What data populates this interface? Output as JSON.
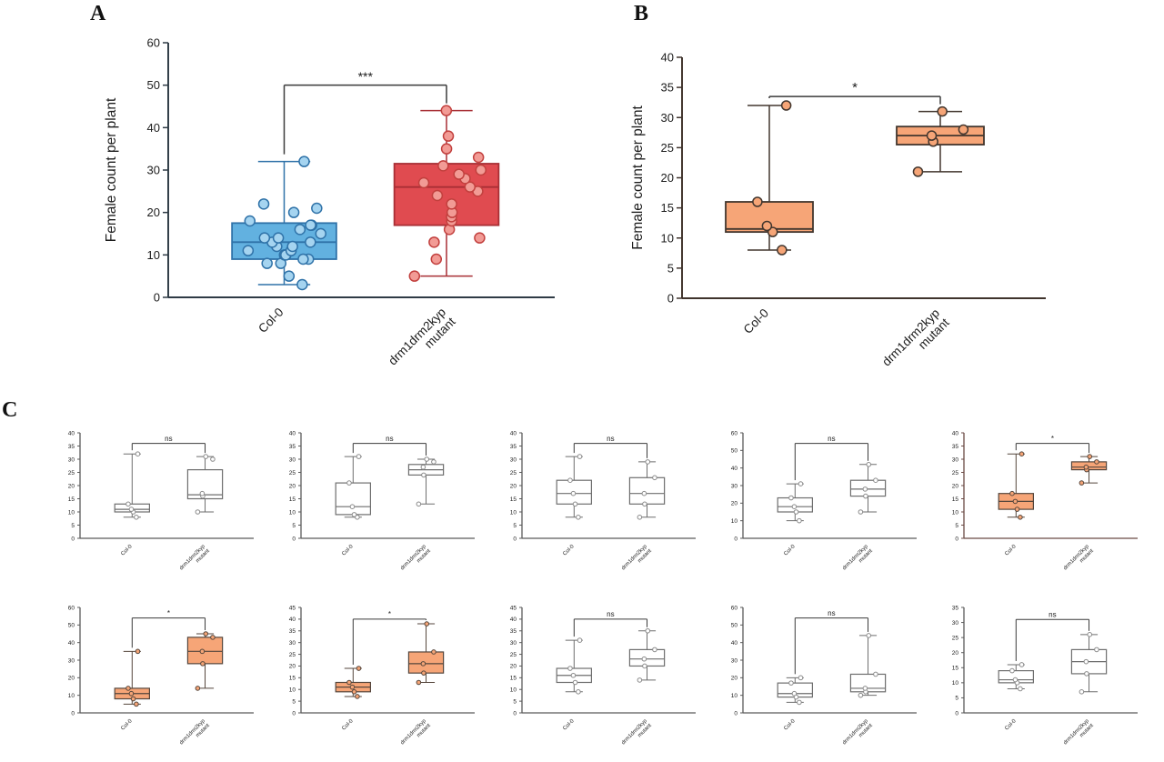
{
  "figure": {
    "background": "#ffffff",
    "panels": [
      {
        "label": "A"
      },
      {
        "label": "B"
      },
      {
        "label": "C"
      }
    ]
  },
  "chart_data": [
    {
      "panel": "A",
      "type": "box",
      "ylabel": "Female count per plant",
      "ylim": [
        0,
        60
      ],
      "ytick_step": 10,
      "axis_color": "#2f3b45",
      "sig_label": "***",
      "sig_y": 50,
      "boxes": [
        {
          "label_lines": [
            "Col-0"
          ],
          "min": 3,
          "q1": 9,
          "median": 13,
          "q3": 17.5,
          "max": 32,
          "points": [
            3,
            5,
            8,
            8,
            9,
            9,
            10,
            10,
            10,
            11,
            11,
            12,
            12,
            13,
            13,
            14,
            14,
            15,
            16,
            17,
            17,
            18,
            20,
            21,
            22,
            32
          ],
          "box_fill": "#62b1e0",
          "box_stroke": "#2f72a8",
          "point_fill": "#a5d4f0",
          "point_stroke": "#2f72a8"
        },
        {
          "label_lines": [
            "drm1drm2kyp",
            "mutant"
          ],
          "min": 5,
          "q1": 17,
          "median": 26,
          "q3": 31.5,
          "max": 44,
          "points": [
            5,
            9,
            13,
            14,
            16,
            18,
            19,
            20,
            22,
            24,
            25,
            26,
            27,
            28,
            29,
            30,
            31,
            33,
            35,
            38,
            44
          ],
          "box_fill": "#e04b50",
          "box_stroke": "#a82f35",
          "point_fill": "#f29b95",
          "point_stroke": "#c2403e"
        }
      ]
    },
    {
      "panel": "B",
      "type": "box",
      "ylabel": "Female count per plant",
      "ylim": [
        0,
        40
      ],
      "ytick_step": 5,
      "axis_color": "#3f332c",
      "sig_label": "*",
      "sig_y": 33.5,
      "boxes": [
        {
          "label_lines": [
            "Col-0"
          ],
          "min": 8,
          "q1": 11,
          "median": 11.5,
          "q3": 16,
          "max": 32,
          "points": [
            8,
            11,
            12,
            16,
            32
          ],
          "box_fill": "#f6a577",
          "box_stroke": "#42362e",
          "point_fill": "#f6a577",
          "point_stroke": "#42362e"
        },
        {
          "label_lines": [
            "drm1drm2kyp",
            "mutant"
          ],
          "min": 21,
          "q1": 25.5,
          "median": 27,
          "q3": 28.5,
          "max": 31,
          "points": [
            21,
            26,
            27,
            28,
            31
          ],
          "box_fill": "#f6a577",
          "box_stroke": "#42362e",
          "point_fill": "#f6a577",
          "point_stroke": "#42362e"
        }
      ]
    },
    {
      "panel": "C1",
      "type": "box",
      "ylabel": "",
      "ylim": [
        0,
        40
      ],
      "ytick_step": 5,
      "axis_color": "#5a5a5a",
      "sig_label": "ns",
      "sig_y": 36,
      "boxes": [
        {
          "label_lines": [
            "Col-0"
          ],
          "min": 8,
          "q1": 10,
          "median": 11,
          "q3": 13,
          "max": 32,
          "points": [
            8,
            10,
            11,
            13,
            32
          ],
          "box_fill": "#ffffff",
          "box_stroke": "#6e6e6e",
          "point_fill": "#ffffff",
          "point_stroke": "#8a8a8a"
        },
        {
          "label_lines": [
            "drm1drm2kyp",
            "mutant"
          ],
          "min": 10,
          "q1": 15,
          "median": 16.5,
          "q3": 26,
          "max": 31,
          "points": [
            10,
            16,
            17,
            30,
            31
          ],
          "box_fill": "#ffffff",
          "box_stroke": "#6e6e6e",
          "point_fill": "#ffffff",
          "point_stroke": "#8a8a8a"
        }
      ]
    },
    {
      "panel": "C2",
      "type": "box",
      "ylabel": "",
      "ylim": [
        0,
        40
      ],
      "ytick_step": 5,
      "axis_color": "#5a5a5a",
      "sig_label": "ns",
      "sig_y": 36,
      "boxes": [
        {
          "label_lines": [
            "Col-0"
          ],
          "min": 8,
          "q1": 9,
          "median": 12,
          "q3": 21,
          "max": 31,
          "points": [
            8,
            9,
            12,
            21,
            31
          ],
          "box_fill": "#ffffff",
          "box_stroke": "#6e6e6e",
          "point_fill": "#ffffff",
          "point_stroke": "#8a8a8a"
        },
        {
          "label_lines": [
            "drm1drm2kyp",
            "mutant"
          ],
          "min": 13,
          "q1": 24,
          "median": 26,
          "q3": 28,
          "max": 30,
          "points": [
            13,
            24,
            27,
            29,
            30
          ],
          "box_fill": "#ffffff",
          "box_stroke": "#6e6e6e",
          "point_fill": "#ffffff",
          "point_stroke": "#8a8a8a"
        }
      ]
    },
    {
      "panel": "C3",
      "type": "box",
      "ylabel": "",
      "ylim": [
        0,
        40
      ],
      "ytick_step": 5,
      "axis_color": "#5a5a5a",
      "sig_label": "ns",
      "sig_y": 36,
      "boxes": [
        {
          "label_lines": [
            "Col-0"
          ],
          "min": 8,
          "q1": 13,
          "median": 17,
          "q3": 22,
          "max": 31,
          "points": [
            8,
            13,
            17,
            22,
            31
          ],
          "box_fill": "#ffffff",
          "box_stroke": "#6e6e6e",
          "point_fill": "#ffffff",
          "point_stroke": "#8a8a8a"
        },
        {
          "label_lines": [
            "drm1drm2kyp",
            "mutant"
          ],
          "min": 8,
          "q1": 13,
          "median": 17,
          "q3": 23,
          "max": 29,
          "points": [
            8,
            13,
            17,
            23,
            29
          ],
          "box_fill": "#ffffff",
          "box_stroke": "#6e6e6e",
          "point_fill": "#ffffff",
          "point_stroke": "#8a8a8a"
        }
      ]
    },
    {
      "panel": "C4",
      "type": "box",
      "ylabel": "",
      "ylim": [
        0,
        60
      ],
      "ytick_step": 10,
      "axis_color": "#5a5a5a",
      "sig_label": "ns",
      "sig_y": 54,
      "boxes": [
        {
          "label_lines": [
            "Col-0"
          ],
          "min": 10,
          "q1": 15,
          "median": 18,
          "q3": 23,
          "max": 31,
          "points": [
            10,
            15,
            18,
            23,
            31
          ],
          "box_fill": "#ffffff",
          "box_stroke": "#6e6e6e",
          "point_fill": "#ffffff",
          "point_stroke": "#8a8a8a"
        },
        {
          "label_lines": [
            "drm1drm2kyp",
            "mutant"
          ],
          "min": 15,
          "q1": 24,
          "median": 28,
          "q3": 33,
          "max": 42,
          "points": [
            15,
            24,
            28,
            33,
            42
          ],
          "box_fill": "#ffffff",
          "box_stroke": "#6e6e6e",
          "point_fill": "#ffffff",
          "point_stroke": "#8a8a8a"
        }
      ]
    },
    {
      "panel": "C5",
      "type": "box",
      "ylabel": "",
      "ylim": [
        0,
        40
      ],
      "ytick_step": 5,
      "axis_color": "#6b4a44",
      "sig_label": "*",
      "sig_y": 36,
      "boxes": [
        {
          "label_lines": [
            "Col-0"
          ],
          "min": 8,
          "q1": 11,
          "median": 14,
          "q3": 17,
          "max": 32,
          "points": [
            8,
            11,
            14,
            17,
            32
          ],
          "box_fill": "#f6a577",
          "box_stroke": "#55463c",
          "point_fill": "#f6a577",
          "point_stroke": "#55463c"
        },
        {
          "label_lines": [
            "drm1drm2kyp",
            "mutant"
          ],
          "min": 21,
          "q1": 26,
          "median": 27,
          "q3": 29,
          "max": 31,
          "points": [
            21,
            26,
            27,
            29,
            31
          ],
          "box_fill": "#f6a577",
          "box_stroke": "#55463c",
          "point_fill": "#f6a577",
          "point_stroke": "#55463c"
        }
      ]
    },
    {
      "panel": "C6",
      "type": "box",
      "ylabel": "",
      "ylim": [
        0,
        60
      ],
      "ytick_step": 10,
      "axis_color": "#5a5a5a",
      "sig_label": "*",
      "sig_y": 54,
      "boxes": [
        {
          "label_lines": [
            "Col-0"
          ],
          "min": 5,
          "q1": 8,
          "median": 11,
          "q3": 14,
          "max": 35,
          "points": [
            5,
            8,
            11,
            14,
            35
          ],
          "box_fill": "#f6a577",
          "box_stroke": "#55463c",
          "point_fill": "#f6a577",
          "point_stroke": "#55463c"
        },
        {
          "label_lines": [
            "drm1drm2kyp",
            "mutant"
          ],
          "min": 14,
          "q1": 28,
          "median": 35,
          "q3": 43,
          "max": 45,
          "points": [
            14,
            28,
            35,
            43,
            45
          ],
          "box_fill": "#f6a577",
          "box_stroke": "#55463c",
          "point_fill": "#f6a577",
          "point_stroke": "#55463c"
        }
      ]
    },
    {
      "panel": "C7",
      "type": "box",
      "ylabel": "",
      "ylim": [
        0,
        45
      ],
      "ytick_step": 5,
      "axis_color": "#5a5a5a",
      "sig_label": "*",
      "sig_y": 40,
      "boxes": [
        {
          "label_lines": [
            "Col-0"
          ],
          "min": 7,
          "q1": 9,
          "median": 11,
          "q3": 13,
          "max": 19,
          "points": [
            7,
            9,
            11,
            13,
            19
          ],
          "box_fill": "#f6a577",
          "box_stroke": "#55463c",
          "point_fill": "#f6a577",
          "point_stroke": "#55463c"
        },
        {
          "label_lines": [
            "drm1drm2kyp",
            "mutant"
          ],
          "min": 13,
          "q1": 17,
          "median": 21,
          "q3": 26,
          "max": 38,
          "points": [
            13,
            17,
            21,
            26,
            38
          ],
          "box_fill": "#f6a577",
          "box_stroke": "#55463c",
          "point_fill": "#f6a577",
          "point_stroke": "#55463c"
        }
      ]
    },
    {
      "panel": "C8",
      "type": "box",
      "ylabel": "",
      "ylim": [
        0,
        45
      ],
      "ytick_step": 5,
      "axis_color": "#5a5a5a",
      "sig_label": "ns",
      "sig_y": 40,
      "boxes": [
        {
          "label_lines": [
            "Col-0"
          ],
          "min": 9,
          "q1": 13,
          "median": 16,
          "q3": 19,
          "max": 31,
          "points": [
            9,
            13,
            16,
            19,
            31
          ],
          "box_fill": "#ffffff",
          "box_stroke": "#6e6e6e",
          "point_fill": "#ffffff",
          "point_stroke": "#8a8a8a"
        },
        {
          "label_lines": [
            "drm1drm2kyp",
            "mutant"
          ],
          "min": 14,
          "q1": 20,
          "median": 23,
          "q3": 27,
          "max": 35,
          "points": [
            14,
            20,
            23,
            27,
            35
          ],
          "box_fill": "#ffffff",
          "box_stroke": "#6e6e6e",
          "point_fill": "#ffffff",
          "point_stroke": "#8a8a8a"
        }
      ]
    },
    {
      "panel": "C9",
      "type": "box",
      "ylabel": "",
      "ylim": [
        0,
        60
      ],
      "ytick_step": 10,
      "axis_color": "#5a5a5a",
      "sig_label": "ns",
      "sig_y": 54,
      "boxes": [
        {
          "label_lines": [
            "Col-0"
          ],
          "min": 6,
          "q1": 9,
          "median": 11,
          "q3": 17,
          "max": 20,
          "points": [
            6,
            9,
            11,
            17,
            20
          ],
          "box_fill": "#ffffff",
          "box_stroke": "#6e6e6e",
          "point_fill": "#ffffff",
          "point_stroke": "#8a8a8a"
        },
        {
          "label_lines": [
            "drm1drm2kyp",
            "mutant"
          ],
          "min": 10,
          "q1": 12,
          "median": 14,
          "q3": 22,
          "max": 44,
          "points": [
            10,
            12,
            14,
            22,
            44
          ],
          "box_fill": "#ffffff",
          "box_stroke": "#6e6e6e",
          "point_fill": "#ffffff",
          "point_stroke": "#8a8a8a"
        }
      ]
    },
    {
      "panel": "C10",
      "type": "box",
      "ylabel": "",
      "ylim": [
        0,
        35
      ],
      "ytick_step": 5,
      "axis_color": "#5a5a5a",
      "sig_label": "ns",
      "sig_y": 31,
      "boxes": [
        {
          "label_lines": [
            "Col-0"
          ],
          "min": 8,
          "q1": 10,
          "median": 11,
          "q3": 14,
          "max": 16,
          "points": [
            8,
            10,
            11,
            14,
            16
          ],
          "box_fill": "#ffffff",
          "box_stroke": "#6e6e6e",
          "point_fill": "#ffffff",
          "point_stroke": "#8a8a8a"
        },
        {
          "label_lines": [
            "drm1drm2kyp",
            "mutant"
          ],
          "min": 7,
          "q1": 13,
          "median": 17,
          "q3": 21,
          "max": 26,
          "points": [
            7,
            13,
            17,
            21,
            26
          ],
          "box_fill": "#ffffff",
          "box_stroke": "#6e6e6e",
          "point_fill": "#ffffff",
          "point_stroke": "#8a8a8a"
        }
      ]
    }
  ]
}
